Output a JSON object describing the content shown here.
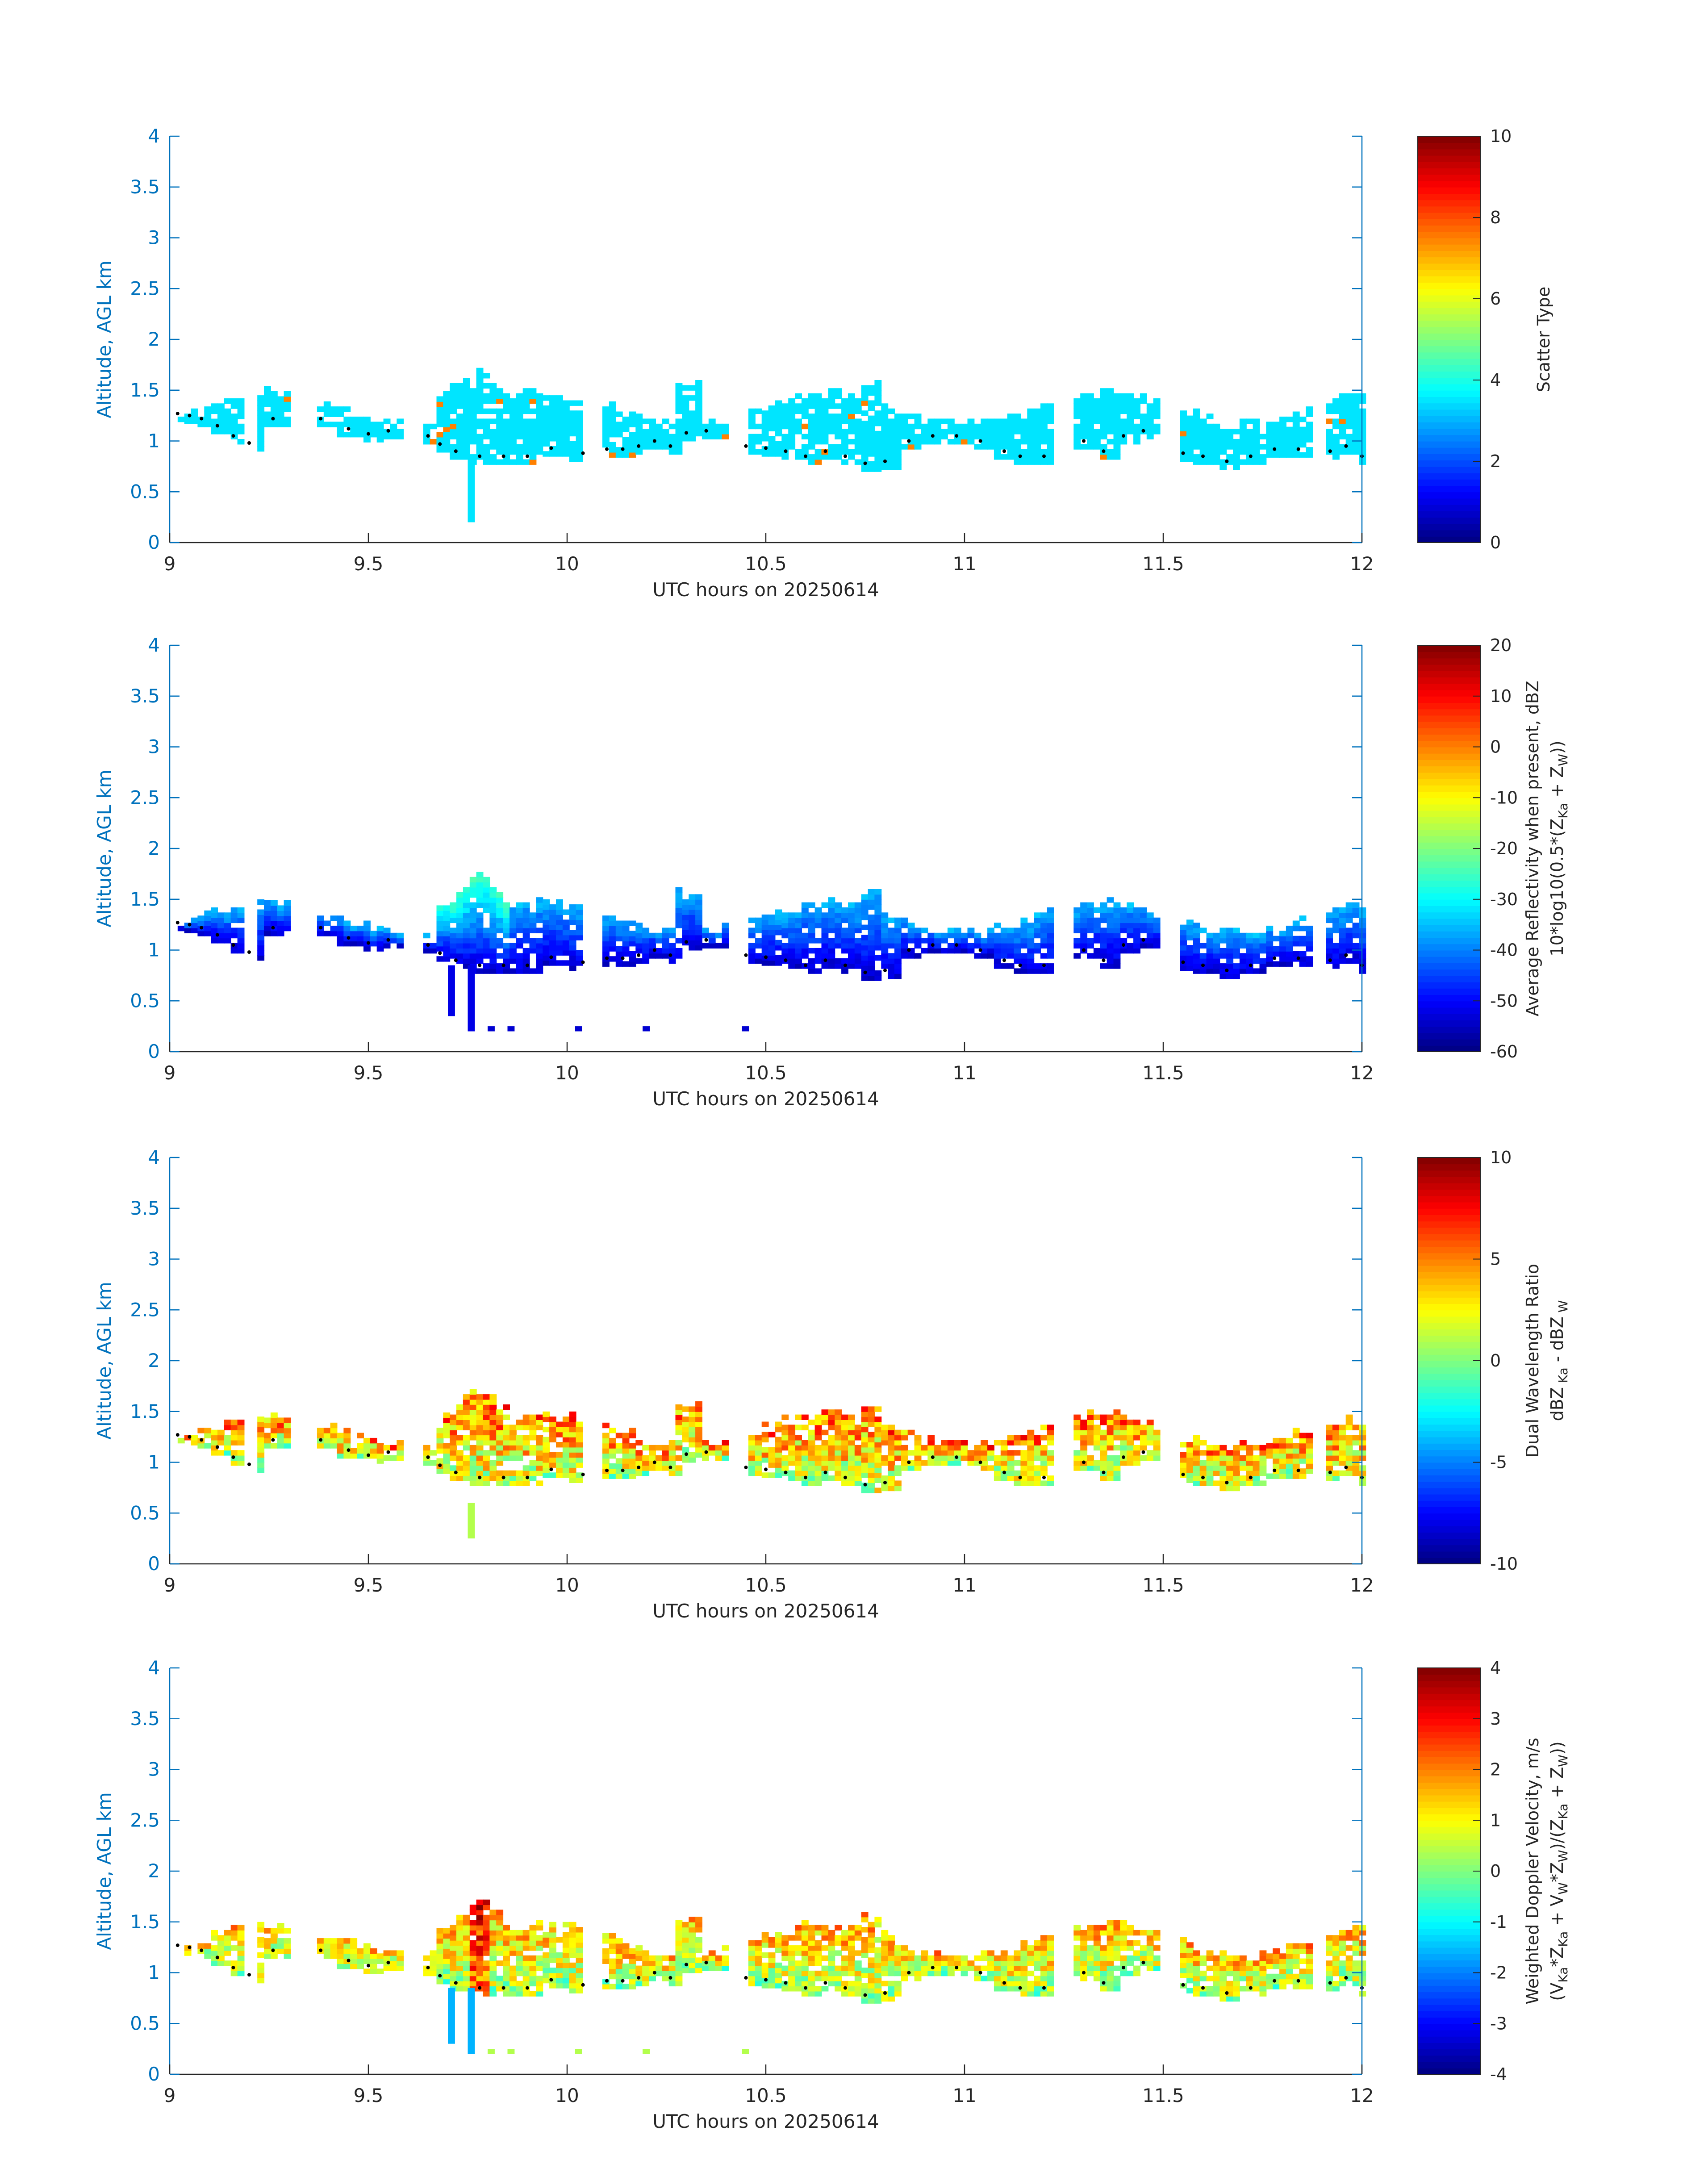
{
  "chart_data": [
    {
      "type": "heatmap",
      "xlabel": "UTC hours on 20250614",
      "ylabel": "Altitude, AGL km",
      "xlim": [
        9,
        12
      ],
      "ylim": [
        0,
        4
      ],
      "xticks": [
        "9",
        "9.5",
        "10",
        "10.5",
        "11",
        "11.5",
        "12"
      ],
      "yticks": [
        "0",
        "0.5",
        "1",
        "1.5",
        "2",
        "2.5",
        "3",
        "3.5",
        "4"
      ],
      "colorbar": {
        "label_lines": [
          "Scatter Type"
        ],
        "range": [
          0,
          10
        ],
        "ticks": [
          "0",
          "2",
          "4",
          "6",
          "8",
          "10"
        ],
        "colormap": "jet"
      },
      "cloud_field": "mostly value ~3.5 (cyan) between 0.8 and 1.5 km; isolated ~7.5 (red) pixels"
    },
    {
      "type": "heatmap",
      "xlabel": "UTC hours on 20250614",
      "ylabel": "Altitude, AGL km",
      "xlim": [
        9,
        12
      ],
      "ylim": [
        0,
        4
      ],
      "xticks": [
        "9",
        "9.5",
        "10",
        "10.5",
        "11",
        "11.5",
        "12"
      ],
      "yticks": [
        "0",
        "0.5",
        "1",
        "1.5",
        "2",
        "2.5",
        "3",
        "3.5",
        "4"
      ],
      "colorbar": {
        "label_lines": [
          "Average Reflectivity when present, dBZ",
          "10*log10(0.5*(Z_Ka + Z_W))"
        ],
        "range": [
          -60,
          20
        ],
        "ticks": [
          "-60",
          "-50",
          "-40",
          "-30",
          "-20",
          "-10",
          "0",
          "10",
          "20"
        ],
        "colormap": "jet"
      }
    },
    {
      "type": "heatmap",
      "xlabel": "UTC hours on 20250614",
      "ylabel": "Altitude, AGL km",
      "xlim": [
        9,
        12
      ],
      "ylim": [
        0,
        4
      ],
      "xticks": [
        "9",
        "9.5",
        "10",
        "10.5",
        "11",
        "11.5",
        "12"
      ],
      "yticks": [
        "0",
        "0.5",
        "1",
        "1.5",
        "2",
        "2.5",
        "3",
        "3.5",
        "4"
      ],
      "colorbar": {
        "label_lines": [
          "Dual Wavelength Ratio",
          "dBZ_Ka - dBZ_W"
        ],
        "range": [
          -10,
          10
        ],
        "ticks": [
          "-10",
          "-5",
          "0",
          "5",
          "10"
        ],
        "colormap": "jet"
      }
    },
    {
      "type": "heatmap",
      "xlabel": "UTC hours on 20250614",
      "ylabel": "Altitude, AGL km",
      "xlim": [
        9,
        12
      ],
      "ylim": [
        0,
        4
      ],
      "xticks": [
        "9",
        "9.5",
        "10",
        "10.5",
        "11",
        "11.5",
        "12"
      ],
      "yticks": [
        "0",
        "0.5",
        "1",
        "1.5",
        "2",
        "2.5",
        "3",
        "3.5",
        "4"
      ],
      "colorbar": {
        "label_lines": [
          "Weighted Doppler Velocity, m/s",
          "(V_Ka*Z_Ka + V_W*Z_W)/(Z_Ka + Z_W)"
        ],
        "range": [
          -4,
          4
        ],
        "ticks": [
          "-4",
          "-3",
          "-2",
          "-1",
          "0",
          "1",
          "2",
          "3",
          "4"
        ],
        "colormap": "jet"
      }
    }
  ],
  "cloud_base_km": [
    [
      9.02,
      1.27
    ],
    [
      9.05,
      1.25
    ],
    [
      9.08,
      1.22
    ],
    [
      9.12,
      1.15
    ],
    [
      9.16,
      1.05
    ],
    [
      9.2,
      0.98
    ],
    [
      9.26,
      1.22
    ],
    [
      9.38,
      1.22
    ],
    [
      9.45,
      1.12
    ],
    [
      9.5,
      1.07
    ],
    [
      9.55,
      1.1
    ],
    [
      9.65,
      1.05
    ],
    [
      9.68,
      0.97
    ],
    [
      9.72,
      0.9
    ],
    [
      9.78,
      0.85
    ],
    [
      9.84,
      0.85
    ],
    [
      9.9,
      0.85
    ],
    [
      9.96,
      0.93
    ],
    [
      10.04,
      0.88
    ],
    [
      10.1,
      0.92
    ],
    [
      10.14,
      0.92
    ],
    [
      10.18,
      0.95
    ],
    [
      10.22,
      1.0
    ],
    [
      10.26,
      0.95
    ],
    [
      10.3,
      1.08
    ],
    [
      10.35,
      1.1
    ],
    [
      10.45,
      0.95
    ],
    [
      10.5,
      0.93
    ],
    [
      10.55,
      0.9
    ],
    [
      10.6,
      0.85
    ],
    [
      10.65,
      0.9
    ],
    [
      10.7,
      0.85
    ],
    [
      10.75,
      0.78
    ],
    [
      10.8,
      0.8
    ],
    [
      10.86,
      1.0
    ],
    [
      10.92,
      1.05
    ],
    [
      10.98,
      1.05
    ],
    [
      11.04,
      1.0
    ],
    [
      11.1,
      0.9
    ],
    [
      11.14,
      0.85
    ],
    [
      11.2,
      0.85
    ],
    [
      11.3,
      1.0
    ],
    [
      11.35,
      0.9
    ],
    [
      11.4,
      1.05
    ],
    [
      11.45,
      1.1
    ],
    [
      11.55,
      0.88
    ],
    [
      11.6,
      0.85
    ],
    [
      11.66,
      0.8
    ],
    [
      11.72,
      0.85
    ],
    [
      11.78,
      0.92
    ],
    [
      11.84,
      0.92
    ],
    [
      11.92,
      0.9
    ],
    [
      11.96,
      0.95
    ],
    [
      12.0,
      0.85
    ]
  ]
}
